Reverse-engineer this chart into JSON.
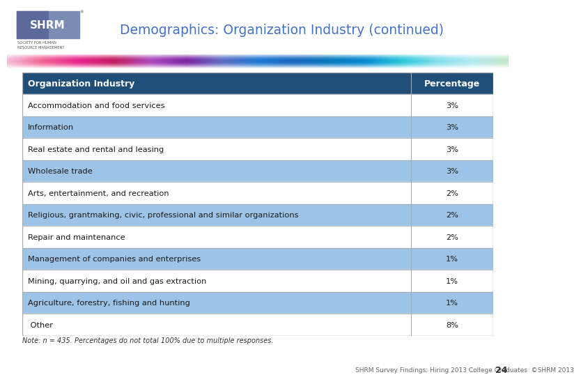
{
  "title": "Demographics: Organization Industry (continued)",
  "header": [
    "Organization Industry",
    "Percentage"
  ],
  "rows": [
    [
      "Accommodation and food services",
      "3%"
    ],
    [
      "Information",
      "3%"
    ],
    [
      "Real estate and rental and leasing",
      "3%"
    ],
    [
      "Wholesale trade",
      "3%"
    ],
    [
      "Arts, entertainment, and recreation",
      "2%"
    ],
    [
      "Religious, grantmaking, civic, professional and similar organizations",
      "2%"
    ],
    [
      "Repair and maintenance",
      "2%"
    ],
    [
      "Management of companies and enterprises",
      "1%"
    ],
    [
      "Mining, quarrying, and oil and gas extraction",
      "1%"
    ],
    [
      "Agriculture, forestry, fishing and hunting",
      "1%"
    ],
    [
      " Other",
      "8%"
    ]
  ],
  "note": "Note: n = 435. Percentages do not total 100% due to multiple responses.",
  "footer": "SHRM Survey Findings: Hiring 2013 College Graduates  ©SHRM 2013",
  "page_num": "24",
  "header_bg": "#1F4E79",
  "header_fg": "#FFFFFF",
  "row_odd_bg": "#FFFFFF",
  "row_even_bg": "#9DC3E6",
  "row_text": "#1a1a1a",
  "title_color": "#4472C4",
  "table_border": "#AAAAAA",
  "bg_color": "#FFFFFF",
  "logo_box1": "#6B7FB5",
  "logo_box2": "#8B9FC5",
  "logo_text": "#FFFFFF",
  "wave_colors": [
    "#F8BBD9",
    "#F06292",
    "#E91E8C",
    "#C2185B",
    "#AB47BC",
    "#7B1FA2",
    "#5C6BC0",
    "#1976D2",
    "#1565C0",
    "#0277BD",
    "#0288D1",
    "#26C6DA",
    "#80DEEA",
    "#B2EBF2",
    "#C8E6C9"
  ]
}
